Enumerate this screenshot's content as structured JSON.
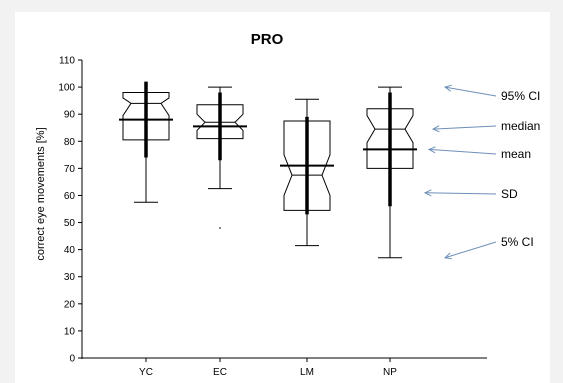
{
  "chart_data": {
    "type": "box",
    "title": "PRO",
    "ylabel": "correct eye movements [%]",
    "xlabel": "",
    "ylim": [
      0,
      110
    ],
    "yticks": [
      0,
      10,
      20,
      30,
      40,
      50,
      60,
      70,
      80,
      90,
      100,
      110
    ],
    "grid": false,
    "categories": [
      "YC",
      "EC",
      "LM",
      "NP"
    ],
    "boxes": [
      {
        "category": "YC",
        "ci5": 57.5,
        "ci95": 98,
        "q1": 80.5,
        "median": 94,
        "q3": 98,
        "notch_low": 89.5,
        "notch_high": 96,
        "mean": 88,
        "sd_low": 74,
        "sd_high": 102
      },
      {
        "category": "EC",
        "ci5": 62.5,
        "ci95": 100,
        "q1": 81,
        "median": 87,
        "q3": 93.5,
        "notch_low": 84,
        "notch_high": 90,
        "mean": 85.5,
        "sd_low": 73,
        "sd_high": 98,
        "outliers": [
          48
        ]
      },
      {
        "category": "LM",
        "ci5": 41.5,
        "ci95": 95.5,
        "q1": 54.5,
        "median": 67.5,
        "q3": 87.5,
        "notch_low": 60,
        "notch_high": 75,
        "mean": 71,
        "sd_low": 53,
        "sd_high": 89
      },
      {
        "category": "NP",
        "ci5": 37,
        "ci95": 100,
        "q1": 70,
        "median": 84.5,
        "q3": 92,
        "notch_low": 79.5,
        "notch_high": 89.5,
        "mean": 77,
        "sd_low": 56,
        "sd_high": 98
      }
    ],
    "annotations": [
      {
        "text": "95% CI",
        "points_to": 100
      },
      {
        "text": "median",
        "points_to": 84.5
      },
      {
        "text": "mean",
        "points_to": 77
      },
      {
        "text": "SD",
        "points_to": 61
      },
      {
        "text": "5% CI",
        "points_to": 37
      }
    ]
  }
}
